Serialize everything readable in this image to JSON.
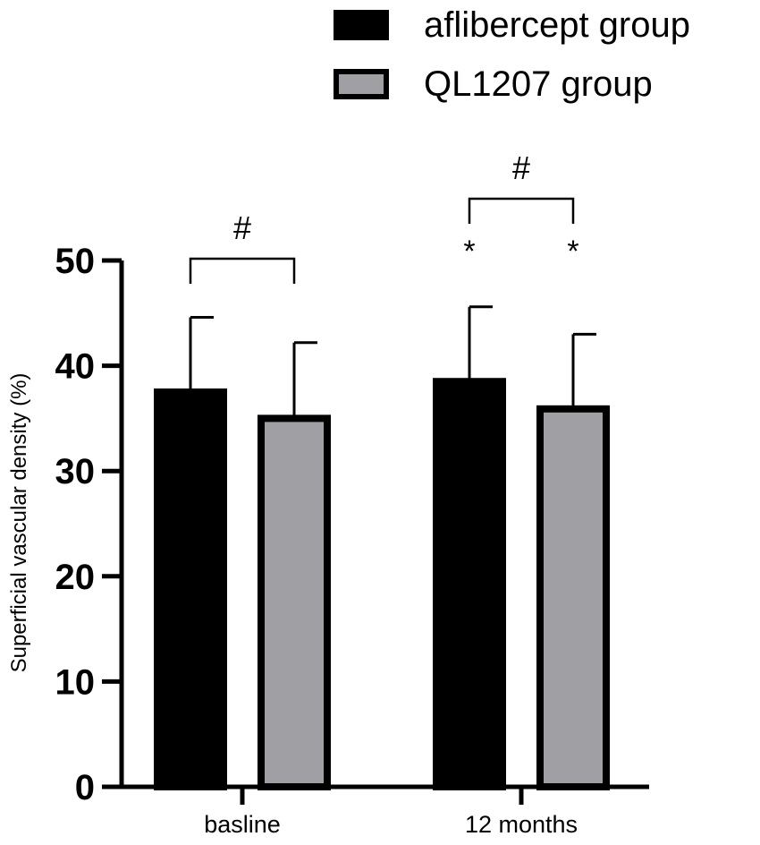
{
  "chart_data": {
    "type": "bar",
    "categories": [
      "basline",
      "12 months"
    ],
    "series": [
      {
        "name": "aflibercept group",
        "values": [
          37.5,
          38.5
        ],
        "errors": [
          7.1,
          7.1
        ],
        "color": "#000000"
      },
      {
        "name": "QL1207 group",
        "values": [
          35.0,
          35.9
        ],
        "errors": [
          7.2,
          7.1
        ],
        "color": "#a0a0a4"
      }
    ],
    "ylabel": "Superficial vascular density (%)",
    "xlabel": "",
    "ylim": [
      0,
      50
    ],
    "yticks": [
      "0",
      "10",
      "20",
      "30",
      "40",
      "50"
    ],
    "grid": false,
    "legend_position": "top-right",
    "annotations": [
      {
        "type": "bracket",
        "category": 0,
        "label": "#"
      },
      {
        "type": "bracket",
        "category": 1,
        "label": "#"
      },
      {
        "type": "star",
        "category": 1,
        "series": 0,
        "label": "*"
      },
      {
        "type": "star",
        "category": 1,
        "series": 1,
        "label": "*"
      }
    ]
  }
}
